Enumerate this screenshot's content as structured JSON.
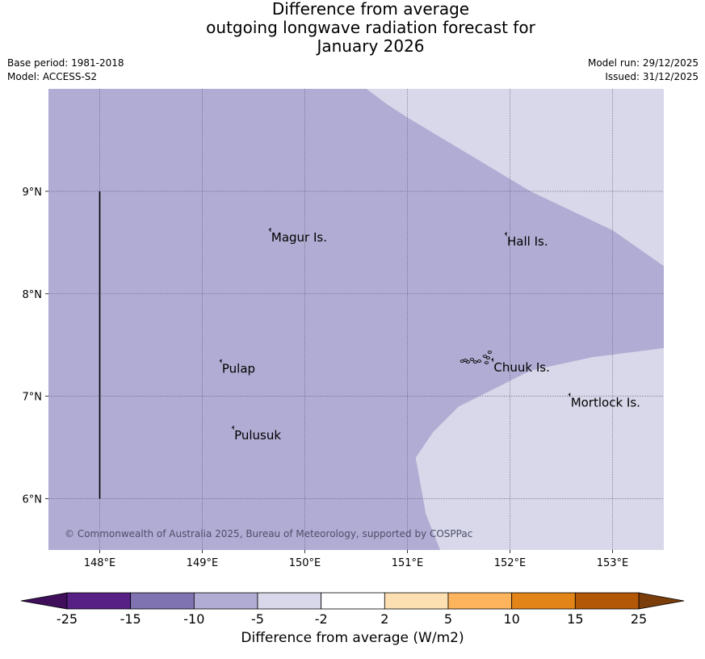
{
  "title": {
    "line1": "Difference from average",
    "line2": "outgoing longwave radiation forecast for",
    "line3": "January 2026"
  },
  "meta": {
    "base_period": "Base period: 1981-2018",
    "model": "Model: ACCESS-S2",
    "model_run": "Model run: 29/12/2025",
    "issued": "Issued: 31/12/2025"
  },
  "map": {
    "lon_range": [
      147.5,
      153.5
    ],
    "lat_range": [
      5.5,
      10.0
    ],
    "lon_ticks": [
      {
        "value": 148,
        "label": "148°E"
      },
      {
        "value": 149,
        "label": "149°E"
      },
      {
        "value": 150,
        "label": "150°E"
      },
      {
        "value": 151,
        "label": "151°E"
      },
      {
        "value": 152,
        "label": "152°E"
      },
      {
        "value": 153,
        "label": "153°E"
      }
    ],
    "lat_ticks": [
      {
        "value": 9,
        "label": "9°N"
      },
      {
        "value": 8,
        "label": "8°N"
      },
      {
        "value": 7,
        "label": "7°N"
      },
      {
        "value": 6,
        "label": "6°N"
      }
    ],
    "gridlines": true,
    "base_fill_color": "#b1acd3",
    "region_fill_color": "#d8d8ea",
    "region_ne": [
      [
        150.6,
        10.0
      ],
      [
        153.5,
        10.0
      ],
      [
        153.5,
        8.27
      ],
      [
        153.0,
        8.62
      ],
      [
        152.2,
        9.0
      ],
      [
        151.7,
        9.3
      ],
      [
        151.0,
        9.72
      ],
      [
        150.8,
        9.85
      ]
    ],
    "region_se": [
      [
        153.5,
        7.47
      ],
      [
        152.8,
        7.38
      ],
      [
        152.2,
        7.25
      ],
      [
        151.7,
        7.0
      ],
      [
        151.5,
        6.9
      ],
      [
        151.25,
        6.65
      ],
      [
        151.08,
        6.4
      ],
      [
        151.18,
        5.85
      ],
      [
        151.32,
        5.5
      ],
      [
        153.5,
        5.5
      ]
    ],
    "boundary_line": {
      "lon": 148.0,
      "lat_from": 6.0,
      "lat_to": 9.0
    },
    "places": [
      {
        "name": "Magur Is.",
        "lon": 149.68,
        "lat": 8.55
      },
      {
        "name": "Hall Is.",
        "lon": 151.98,
        "lat": 8.51
      },
      {
        "name": "Pulap",
        "lon": 149.2,
        "lat": 7.27
      },
      {
        "name": "Chuuk Is.",
        "lon": 151.85,
        "lat": 7.28
      },
      {
        "name": "Mortlock Is.",
        "lon": 152.6,
        "lat": 6.94
      },
      {
        "name": "Pulusuk",
        "lon": 149.32,
        "lat": 6.62
      }
    ],
    "copyright": "© Commonwealth of Australia 2025, Bureau of Meteorology, supported by COSPPac"
  },
  "colorbar": {
    "label": "Difference from average (W/m2)",
    "ticks": [
      "-25",
      "-15",
      "-10",
      "-5",
      "-2",
      "2",
      "5",
      "10",
      "15",
      "25"
    ],
    "under_color": "#3f0f5c",
    "over_color": "#7b3e0a",
    "bin_colors": [
      "#562085",
      "#7f73b2",
      "#b1acd3",
      "#d8d8ea",
      "#ffffff",
      "#fde0b2",
      "#fdb45d",
      "#e28418",
      "#b35806"
    ]
  }
}
